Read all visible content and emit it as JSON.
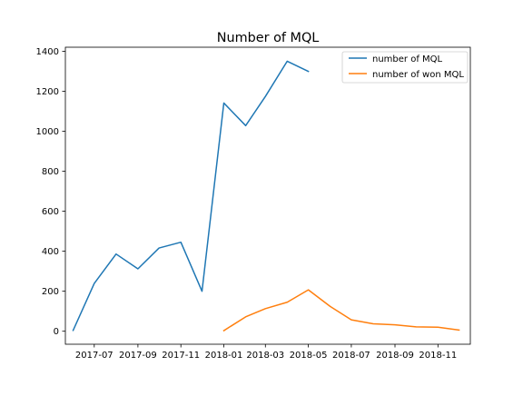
{
  "chart_data": {
    "type": "line",
    "title": "Number of MQL",
    "xlabel": "",
    "ylabel": "",
    "x": [
      "2017-06",
      "2017-07",
      "2017-08",
      "2017-09",
      "2017-10",
      "2017-11",
      "2017-12",
      "2018-01",
      "2018-02",
      "2018-03",
      "2018-04",
      "2018-05",
      "2018-06",
      "2018-07",
      "2018-08",
      "2018-09",
      "2018-10",
      "2018-11",
      "2018-12"
    ],
    "x_ticks": [
      "2017-07",
      "2017-09",
      "2017-11",
      "2018-01",
      "2018-03",
      "2018-05",
      "2018-07",
      "2018-09",
      "2018-11"
    ],
    "y_ticks": [
      0,
      200,
      400,
      600,
      800,
      1000,
      1200,
      1400
    ],
    "ylim": [
      -65,
      1420
    ],
    "xlim": [
      "2017-05-21",
      "2018-12-17"
    ],
    "grid": false,
    "legend_position": "upper right",
    "series": [
      {
        "name": "number of MQL",
        "color": "#1f77b4",
        "x": [
          "2017-06-01",
          "2017-07-01",
          "2017-08-01",
          "2017-09-01",
          "2017-10-01",
          "2017-11-01",
          "2017-12-01",
          "2018-01-01",
          "2018-02-01",
          "2018-03-01",
          "2018-04-01",
          "2018-05-01",
          "2018-06-01"
        ],
        "values": [
          4,
          239,
          386,
          312,
          416,
          445,
          200,
          1141,
          1028,
          1174,
          1350,
          1299,
          null
        ]
      },
      {
        "name": "number of won MQL",
        "color": "#ff7f0e",
        "x": [
          "2018-01-01",
          "2018-02-01",
          "2018-03-01",
          "2018-04-01",
          "2018-05-01",
          "2018-06-01",
          "2018-07-01",
          "2018-08-01",
          "2018-09-01",
          "2018-10-01",
          "2018-11-01",
          "2018-12-01"
        ],
        "values": [
          3,
          72,
          113,
          145,
          207,
          124,
          57,
          37,
          32,
          22,
          20,
          6
        ]
      }
    ]
  }
}
